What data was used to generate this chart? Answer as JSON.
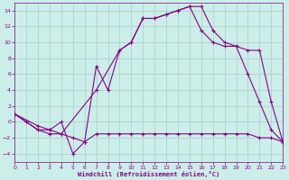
{
  "xlabel": "Windchill (Refroidissement éolien,°C)",
  "xlim": [
    0,
    23
  ],
  "ylim": [
    -5,
    15
  ],
  "yticks": [
    -4,
    -2,
    0,
    2,
    4,
    6,
    8,
    10,
    12,
    14
  ],
  "xticks": [
    0,
    1,
    2,
    3,
    4,
    5,
    6,
    7,
    8,
    9,
    10,
    11,
    12,
    13,
    14,
    15,
    16,
    17,
    18,
    19,
    20,
    21,
    22,
    23
  ],
  "bg_color": "#cceee8",
  "grid_color": "#aacccc",
  "line_color": "#880088",
  "series": [
    [
      0,
      1,
      1,
      0,
      2,
      -1,
      3,
      -1,
      4,
      0,
      5,
      -4,
      6,
      -2.5,
      7,
      7,
      8,
      4,
      9,
      9,
      10,
      10,
      11,
      13,
      12,
      13,
      13,
      13.5,
      14,
      14,
      15,
      14.5,
      16,
      14.5,
      17,
      11.5,
      18,
      10,
      19,
      9.5,
      20,
      6,
      21,
      2.5,
      22,
      -1,
      23,
      -2.5
    ],
    [
      0,
      1,
      1,
      0,
      2,
      -1,
      3,
      -1.5,
      4,
      -1.5,
      7,
      4,
      9,
      9,
      10,
      10,
      11,
      13,
      12,
      13,
      13,
      13.5,
      14,
      14,
      15,
      14.5,
      16,
      11.5,
      17,
      10,
      18,
      9.5,
      19,
      9.5,
      20,
      9,
      21,
      9,
      22,
      2.5,
      23,
      -2.5
    ],
    [
      0,
      1,
      2,
      -0.5,
      3,
      -1,
      4,
      -1.5,
      5,
      -2,
      6,
      -2.5,
      7,
      -1.5,
      8,
      -1.5,
      9,
      -1.5,
      10,
      -1.5,
      11,
      -1.5,
      12,
      -1.5,
      13,
      -1.5,
      14,
      -1.5,
      15,
      -1.5,
      16,
      -1.5,
      17,
      -1.5,
      18,
      -1.5,
      19,
      -1.5,
      20,
      -1.5,
      21,
      -2,
      22,
      -2,
      23,
      -2.5
    ]
  ]
}
